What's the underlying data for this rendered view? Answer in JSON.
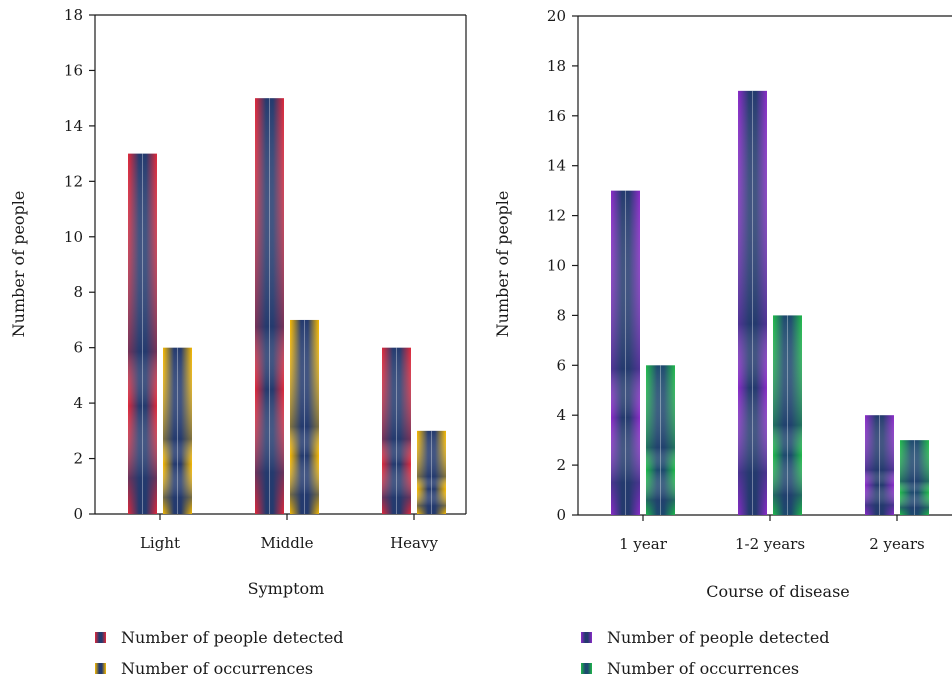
{
  "chart_data": [
    {
      "type": "bar",
      "title": "",
      "xlabel": "Symptom",
      "ylabel": "Number of people",
      "categories": [
        "Light",
        "Middle",
        "Heavy"
      ],
      "ylim": [
        0,
        18
      ],
      "yticks": [
        0,
        2,
        4,
        6,
        8,
        10,
        12,
        14,
        16,
        18
      ],
      "series": [
        {
          "name": "Number of people detected",
          "values": [
            13,
            15,
            6
          ],
          "color": "#e0283a",
          "shade": "#243a6e"
        },
        {
          "name": "Number of occurrences",
          "values": [
            6,
            7,
            3
          ],
          "color": "#f5b800",
          "shade": "#243a6e"
        }
      ],
      "legend": "bottom-left",
      "grid": false
    },
    {
      "type": "bar",
      "title": "",
      "xlabel": "Course of disease",
      "ylabel": "Number of people",
      "categories": [
        "1 year",
        "1-2 years",
        "2 years"
      ],
      "ylim": [
        0,
        20
      ],
      "yticks": [
        0,
        2,
        4,
        6,
        8,
        10,
        12,
        14,
        16,
        18,
        20
      ],
      "series": [
        {
          "name": "Number of people detected",
          "values": [
            13,
            17,
            4
          ],
          "color": "#8a2bc8",
          "shade": "#243a6e"
        },
        {
          "name": "Number of occurrences",
          "values": [
            6,
            8,
            3
          ],
          "color": "#1fb84a",
          "shade": "#1d4a6e"
        }
      ],
      "legend": "bottom-left",
      "grid": false
    }
  ]
}
